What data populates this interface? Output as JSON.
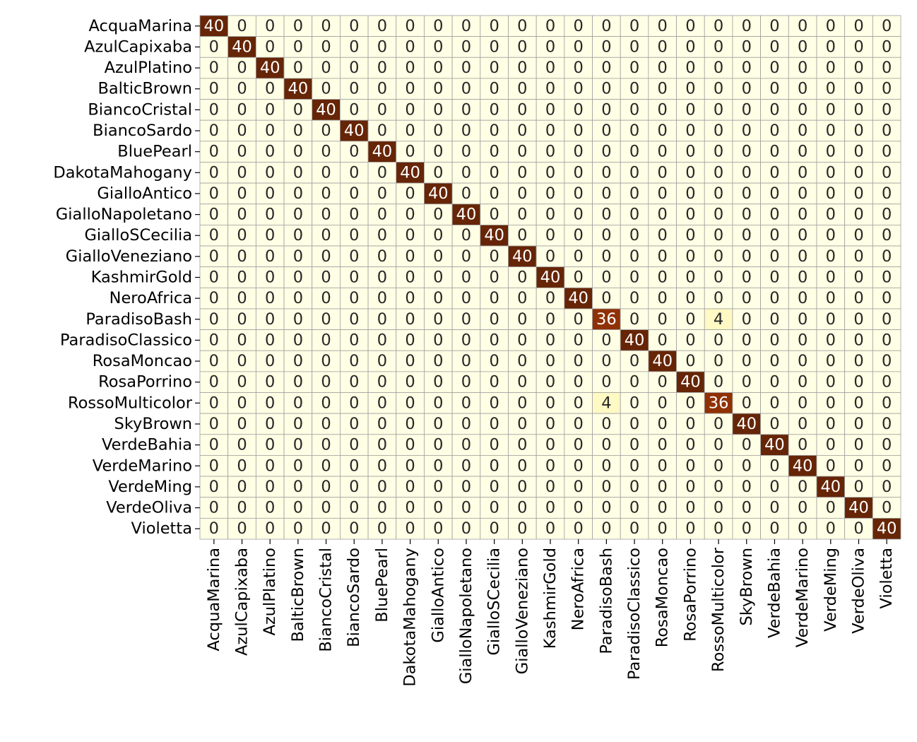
{
  "chart_data": {
    "type": "heatmap",
    "title": "",
    "xlabel": "",
    "ylabel": "",
    "colormap": "YlOrBr",
    "colors": {
      "low": "#ffffe5",
      "high": "#662506",
      "grid_line": "#a0a0a0",
      "text_light": "#ffffff",
      "text_dark": "#262626"
    },
    "value_range": [
      0,
      40
    ],
    "row_labels": [
      "AcquaMarina",
      "AzulCapixaba",
      "AzulPlatino",
      "BalticBrown",
      "BiancoCristal",
      "BiancoSardo",
      "BluePearl",
      "DakotaMahogany",
      "GialloAntico",
      "GialloNapoletano",
      "GialloSCecilia",
      "GialloVeneziano",
      "KashmirGold",
      "NeroAfrica",
      "ParadisoBash",
      "ParadisoClassico",
      "RosaMoncao",
      "RosaPorrino",
      "RossoMulticolor",
      "SkyBrown",
      "VerdeBahia",
      "VerdeMarino",
      "VerdeMing",
      "VerdeOliva",
      "Violetta"
    ],
    "col_labels": [
      "AcquaMarina",
      "AzulCapixaba",
      "AzulPlatino",
      "BalticBrown",
      "BiancoCristal",
      "BiancoSardo",
      "BluePearl",
      "DakotaMahogany",
      "GialloAntico",
      "GialloNapoletano",
      "GialloSCecilia",
      "GialloVeneziano",
      "KashmirGold",
      "NeroAfrica",
      "ParadisoBash",
      "ParadisoClassico",
      "RosaMoncao",
      "RosaPorrino",
      "RossoMulticolor",
      "SkyBrown",
      "VerdeBahia",
      "VerdeMarino",
      "VerdeMing",
      "VerdeOliva",
      "Violetta"
    ],
    "matrix": [
      [
        40,
        0,
        0,
        0,
        0,
        0,
        0,
        0,
        0,
        0,
        0,
        0,
        0,
        0,
        0,
        0,
        0,
        0,
        0,
        0,
        0,
        0,
        0,
        0,
        0
      ],
      [
        0,
        40,
        0,
        0,
        0,
        0,
        0,
        0,
        0,
        0,
        0,
        0,
        0,
        0,
        0,
        0,
        0,
        0,
        0,
        0,
        0,
        0,
        0,
        0,
        0
      ],
      [
        0,
        0,
        40,
        0,
        0,
        0,
        0,
        0,
        0,
        0,
        0,
        0,
        0,
        0,
        0,
        0,
        0,
        0,
        0,
        0,
        0,
        0,
        0,
        0,
        0
      ],
      [
        0,
        0,
        0,
        40,
        0,
        0,
        0,
        0,
        0,
        0,
        0,
        0,
        0,
        0,
        0,
        0,
        0,
        0,
        0,
        0,
        0,
        0,
        0,
        0,
        0
      ],
      [
        0,
        0,
        0,
        0,
        40,
        0,
        0,
        0,
        0,
        0,
        0,
        0,
        0,
        0,
        0,
        0,
        0,
        0,
        0,
        0,
        0,
        0,
        0,
        0,
        0
      ],
      [
        0,
        0,
        0,
        0,
        0,
        40,
        0,
        0,
        0,
        0,
        0,
        0,
        0,
        0,
        0,
        0,
        0,
        0,
        0,
        0,
        0,
        0,
        0,
        0,
        0
      ],
      [
        0,
        0,
        0,
        0,
        0,
        0,
        40,
        0,
        0,
        0,
        0,
        0,
        0,
        0,
        0,
        0,
        0,
        0,
        0,
        0,
        0,
        0,
        0,
        0,
        0
      ],
      [
        0,
        0,
        0,
        0,
        0,
        0,
        0,
        40,
        0,
        0,
        0,
        0,
        0,
        0,
        0,
        0,
        0,
        0,
        0,
        0,
        0,
        0,
        0,
        0,
        0
      ],
      [
        0,
        0,
        0,
        0,
        0,
        0,
        0,
        0,
        40,
        0,
        0,
        0,
        0,
        0,
        0,
        0,
        0,
        0,
        0,
        0,
        0,
        0,
        0,
        0,
        0
      ],
      [
        0,
        0,
        0,
        0,
        0,
        0,
        0,
        0,
        0,
        40,
        0,
        0,
        0,
        0,
        0,
        0,
        0,
        0,
        0,
        0,
        0,
        0,
        0,
        0,
        0
      ],
      [
        0,
        0,
        0,
        0,
        0,
        0,
        0,
        0,
        0,
        0,
        40,
        0,
        0,
        0,
        0,
        0,
        0,
        0,
        0,
        0,
        0,
        0,
        0,
        0,
        0
      ],
      [
        0,
        0,
        0,
        0,
        0,
        0,
        0,
        0,
        0,
        0,
        0,
        40,
        0,
        0,
        0,
        0,
        0,
        0,
        0,
        0,
        0,
        0,
        0,
        0,
        0
      ],
      [
        0,
        0,
        0,
        0,
        0,
        0,
        0,
        0,
        0,
        0,
        0,
        0,
        40,
        0,
        0,
        0,
        0,
        0,
        0,
        0,
        0,
        0,
        0,
        0,
        0
      ],
      [
        0,
        0,
        0,
        0,
        0,
        0,
        0,
        0,
        0,
        0,
        0,
        0,
        0,
        40,
        0,
        0,
        0,
        0,
        0,
        0,
        0,
        0,
        0,
        0,
        0
      ],
      [
        0,
        0,
        0,
        0,
        0,
        0,
        0,
        0,
        0,
        0,
        0,
        0,
        0,
        0,
        36,
        0,
        0,
        0,
        4,
        0,
        0,
        0,
        0,
        0,
        0
      ],
      [
        0,
        0,
        0,
        0,
        0,
        0,
        0,
        0,
        0,
        0,
        0,
        0,
        0,
        0,
        0,
        40,
        0,
        0,
        0,
        0,
        0,
        0,
        0,
        0,
        0
      ],
      [
        0,
        0,
        0,
        0,
        0,
        0,
        0,
        0,
        0,
        0,
        0,
        0,
        0,
        0,
        0,
        0,
        40,
        0,
        0,
        0,
        0,
        0,
        0,
        0,
        0
      ],
      [
        0,
        0,
        0,
        0,
        0,
        0,
        0,
        0,
        0,
        0,
        0,
        0,
        0,
        0,
        0,
        0,
        0,
        40,
        0,
        0,
        0,
        0,
        0,
        0,
        0
      ],
      [
        0,
        0,
        0,
        0,
        0,
        0,
        0,
        0,
        0,
        0,
        0,
        0,
        0,
        0,
        4,
        0,
        0,
        0,
        36,
        0,
        0,
        0,
        0,
        0,
        0
      ],
      [
        0,
        0,
        0,
        0,
        0,
        0,
        0,
        0,
        0,
        0,
        0,
        0,
        0,
        0,
        0,
        0,
        0,
        0,
        0,
        40,
        0,
        0,
        0,
        0,
        0
      ],
      [
        0,
        0,
        0,
        0,
        0,
        0,
        0,
        0,
        0,
        0,
        0,
        0,
        0,
        0,
        0,
        0,
        0,
        0,
        0,
        0,
        40,
        0,
        0,
        0,
        0
      ],
      [
        0,
        0,
        0,
        0,
        0,
        0,
        0,
        0,
        0,
        0,
        0,
        0,
        0,
        0,
        0,
        0,
        0,
        0,
        0,
        0,
        0,
        40,
        0,
        0,
        0
      ],
      [
        0,
        0,
        0,
        0,
        0,
        0,
        0,
        0,
        0,
        0,
        0,
        0,
        0,
        0,
        0,
        0,
        0,
        0,
        0,
        0,
        0,
        0,
        40,
        0,
        0
      ],
      [
        0,
        0,
        0,
        0,
        0,
        0,
        0,
        0,
        0,
        0,
        0,
        0,
        0,
        0,
        0,
        0,
        0,
        0,
        0,
        0,
        0,
        0,
        0,
        40,
        0
      ],
      [
        0,
        0,
        0,
        0,
        0,
        0,
        0,
        0,
        0,
        0,
        0,
        0,
        0,
        0,
        0,
        0,
        0,
        0,
        0,
        0,
        0,
        0,
        0,
        0,
        40
      ]
    ],
    "grid": true,
    "legend": "none"
  }
}
